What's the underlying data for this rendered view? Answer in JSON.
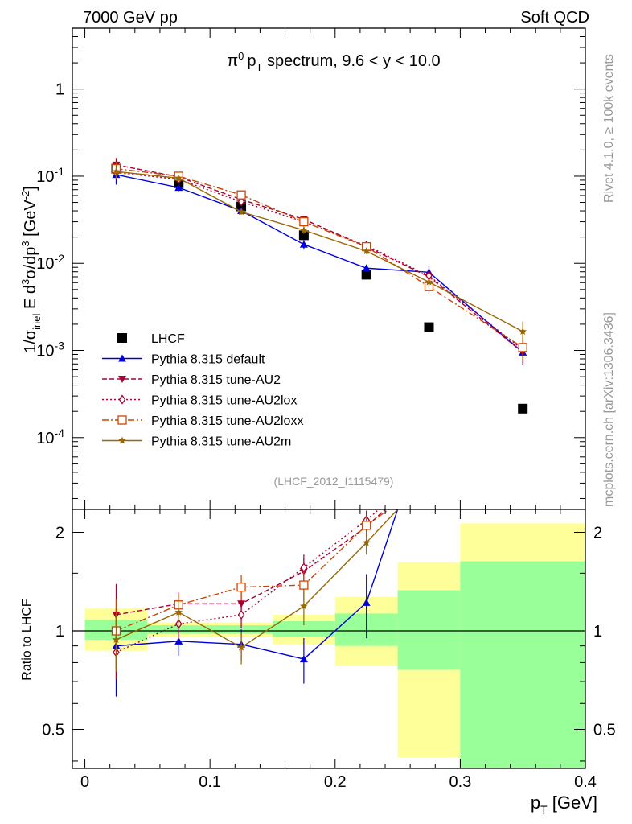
{
  "header": {
    "left": "7000 GeV pp",
    "right": "Soft QCD"
  },
  "side_text": {
    "rivet": "Rivet 4.1.0, ≥ 100k events",
    "mcplots": "mcplots.cern.ch [arXiv:1306.3436]"
  },
  "chart_data": [
    {
      "type": "line",
      "title": "π⁰ pT spectrum, 9.6 < y < 10.0",
      "title_parts": {
        "pi": "π",
        "pi_sup": "0",
        "p": "p",
        "p_sub": "T",
        "rest": " spectrum, 9.6 < y < 10.0"
      },
      "ylabel": "1/σinel E d³σ/dp³ [GeV⁻²]",
      "ylabel_parts": {
        "a": "1/σ",
        "a_sub": "inel",
        "b": " E d",
        "b_sup": "3",
        "c": "σ/dp",
        "c_sup": "3",
        "d": " [GeV",
        "d_sup": "-2",
        "e": "]"
      },
      "yscale": "log",
      "ylim": [
        1.5e-05,
        5
      ],
      "xlim": [
        -0.01,
        0.4
      ],
      "y_ticks": [
        {
          "base": "1",
          "exp": ""
        },
        {
          "base": "10",
          "exp": "-1"
        },
        {
          "base": "10",
          "exp": "-2"
        },
        {
          "base": "10",
          "exp": "-3"
        },
        {
          "base": "10",
          "exp": "-4"
        }
      ],
      "y_tick_values": [
        1,
        0.1,
        0.01,
        0.001,
        0.0001
      ],
      "watermark": "(LHCF_2012_I1115479)",
      "legend_position": "bottom-left",
      "x": [
        0.025,
        0.075,
        0.125,
        0.175,
        0.225,
        0.275,
        0.35
      ],
      "series": [
        {
          "name": "LHCF",
          "color": "#000000",
          "marker": "square-filled",
          "dash": "none",
          "values": [
            0.122,
            0.083,
            0.045,
            0.021,
            0.0074,
            0.00185,
            0.000215
          ]
        },
        {
          "name": "Pythia 8.315 default",
          "color": "#0000dd",
          "marker": "triangle-up",
          "dash": "solid",
          "values": [
            0.104,
            0.074,
            0.04,
            0.0165,
            0.0088,
            0.0079,
            0.00095
          ],
          "err": [
            0.3,
            0.12,
            0.1,
            0.15,
            0.08,
            0.2,
            0.4
          ]
        },
        {
          "name": "Pythia 8.315 tune-AU2",
          "color": "#aa0033",
          "marker": "triangle-down",
          "dash": "dash",
          "values": [
            0.135,
            0.098,
            0.054,
            0.032,
            0.0155,
            0.007,
            0.00095
          ],
          "err": [
            0.2,
            0.08,
            0.08,
            0.1,
            0.08,
            0.2,
            0.4
          ]
        },
        {
          "name": "Pythia 8.315 tune-AU2lox",
          "color": "#aa0033",
          "marker": "diamond-open",
          "dash": "dot",
          "values": [
            0.11,
            0.092,
            0.051,
            0.03,
            0.016,
            0.0072,
            0.00102
          ],
          "err": [
            0.2,
            0.08,
            0.08,
            0.1,
            0.08,
            0.2,
            0.4
          ]
        },
        {
          "name": "Pythia 8.315 tune-AU2loxx",
          "color": "#cc4400",
          "marker": "square-open",
          "dash": "dashdot",
          "values": [
            0.122,
            0.1,
            0.061,
            0.03,
            0.0155,
            0.0054,
            0.00108
          ],
          "err": [
            0.2,
            0.08,
            0.08,
            0.1,
            0.08,
            0.2,
            0.4
          ]
        },
        {
          "name": "Pythia 8.315 tune-AU2m",
          "color": "#996600",
          "marker": "star",
          "dash": "solid",
          "values": [
            0.113,
            0.095,
            0.039,
            0.024,
            0.0138,
            0.0061,
            0.00165
          ],
          "err": [
            0.2,
            0.08,
            0.08,
            0.1,
            0.08,
            0.2,
            0.3
          ]
        }
      ]
    },
    {
      "type": "line",
      "ylabel": "Ratio to LHCF",
      "xlabel": "pT [GeV]",
      "xlabel_parts": {
        "p": "p",
        "sub": "T",
        "rest": " [GeV]"
      },
      "yscale": "log",
      "ylim": [
        0.38,
        2.35
      ],
      "xlim": [
        -0.01,
        0.4
      ],
      "x_ticks": [
        0,
        0.1,
        0.2,
        0.3,
        0.4
      ],
      "x_tick_labels": [
        "0",
        "0.1",
        "0.2",
        "0.3",
        "0.4"
      ],
      "y_ticks": [
        0.5,
        1,
        2
      ],
      "y_tick_labels": [
        "0.5",
        "1",
        "2"
      ],
      "reference_line": 1,
      "band_bins": [
        {
          "x0": 0.0,
          "x1": 0.05,
          "inner": [
            0.94,
            1.08
          ],
          "outer": [
            0.87,
            1.17
          ]
        },
        {
          "x0": 0.05,
          "x1": 0.1,
          "inner": [
            0.98,
            1.04
          ],
          "outer": [
            0.96,
            1.06
          ]
        },
        {
          "x0": 0.1,
          "x1": 0.15,
          "inner": [
            0.98,
            1.04
          ],
          "outer": [
            0.96,
            1.06
          ]
        },
        {
          "x0": 0.15,
          "x1": 0.2,
          "inner": [
            0.96,
            1.07
          ],
          "outer": [
            0.91,
            1.12
          ]
        },
        {
          "x0": 0.2,
          "x1": 0.25,
          "inner": [
            0.9,
            1.13
          ],
          "outer": [
            0.78,
            1.27
          ]
        },
        {
          "x0": 0.25,
          "x1": 0.3,
          "inner": [
            0.76,
            1.33
          ],
          "outer": [
            0.41,
            1.62
          ]
        },
        {
          "x0": 0.3,
          "x1": 0.4,
          "inner": [
            0.36,
            1.63
          ],
          "outer": [
            0.36,
            2.13
          ]
        }
      ],
      "series": [
        {
          "name": "Pythia 8.315 default",
          "color": "#0000dd",
          "marker": "triangle-up",
          "dash": "solid",
          "x": [
            0.025,
            0.075,
            0.125,
            0.175,
            0.225,
            0.25
          ],
          "values": [
            0.9,
            0.93,
            0.91,
            0.82,
            1.22,
            2.35
          ],
          "err": [
            0.27,
            0.09,
            0.1,
            0.13,
            0.27,
            0
          ]
        },
        {
          "name": "Pythia 8.315 tune-AU2",
          "color": "#aa0033",
          "marker": "triangle-down",
          "dash": "dash",
          "x": [
            0.025,
            0.075,
            0.125,
            0.175,
            0.225,
            0.24
          ],
          "values": [
            1.12,
            1.21,
            1.21,
            1.52,
            2.08,
            2.35
          ],
          "err": [
            0.27,
            0.1,
            0.1,
            0.15,
            0.15,
            0
          ]
        },
        {
          "name": "Pythia 8.315 tune-AU2lox",
          "color": "#aa0033",
          "marker": "diamond-open",
          "dash": "dot",
          "x": [
            0.025,
            0.075,
            0.125,
            0.175,
            0.225,
            0.235
          ],
          "values": [
            0.86,
            1.05,
            1.12,
            1.56,
            2.18,
            2.35
          ],
          "err": [
            0.15,
            0.1,
            0.1,
            0.15,
            0.15,
            0
          ]
        },
        {
          "name": "Pythia 8.315 tune-AU2loxx",
          "color": "#cc4400",
          "marker": "square-open",
          "dash": "dashdot",
          "x": [
            0.025,
            0.075,
            0.125,
            0.175,
            0.225,
            0.243
          ],
          "values": [
            1.0,
            1.2,
            1.36,
            1.38,
            2.1,
            2.35
          ],
          "err": [
            0.25,
            0.1,
            0.12,
            0.15,
            0.15,
            0
          ]
        },
        {
          "name": "Pythia 8.315 tune-AU2m",
          "color": "#996600",
          "marker": "star",
          "dash": "solid",
          "x": [
            0.025,
            0.075,
            0.125,
            0.175,
            0.225,
            0.25
          ],
          "values": [
            0.94,
            1.14,
            0.89,
            1.19,
            1.86,
            2.35
          ],
          "err": [
            0.18,
            0.1,
            0.1,
            0.15,
            0.15,
            0
          ]
        }
      ]
    }
  ]
}
